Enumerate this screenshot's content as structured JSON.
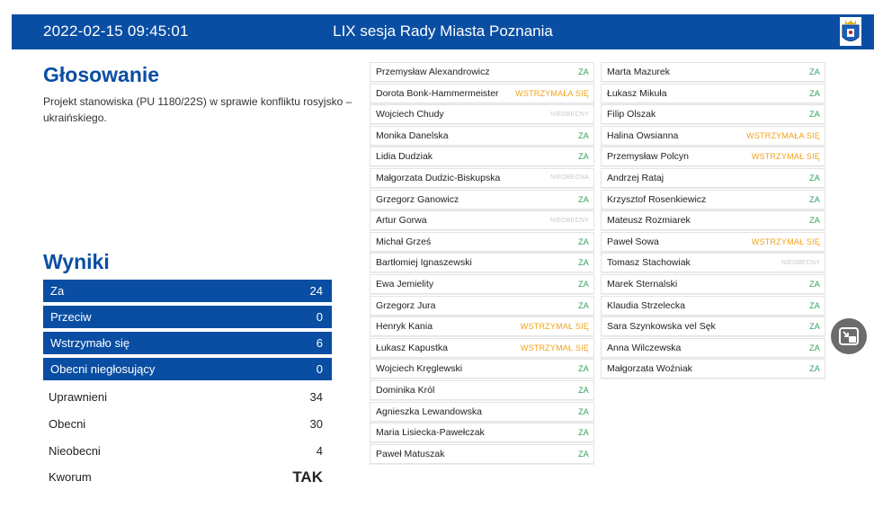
{
  "header": {
    "datetime": "2022-02-15   09:45:01",
    "title": "LIX sesja Rady Miasta Poznania"
  },
  "voting": {
    "heading": "Głosowanie",
    "project": "Projekt stanowiska (PU 1180/22S) w sprawie konfliktu rosyjsko – ukraińskiego."
  },
  "results": {
    "heading": "Wyniki",
    "za_label": "Za",
    "za_value": "24",
    "przeciw_label": "Przeciw",
    "przeciw_value": "0",
    "wstrzymalo_label": "Wstrzymało się",
    "wstrzymalo_value": "6",
    "obecni_nieg_label": "Obecni niegłosujący",
    "obecni_nieg_value": "0",
    "uprawnieni_label": "Uprawnieni",
    "uprawnieni_value": "34",
    "obecni_label": "Obecni",
    "obecni_value": "30",
    "nieobecni_label": "Nieobecni",
    "nieobecni_value": "4",
    "kworum_label": "Kworum",
    "kworum_value": "TAK"
  },
  "votes_left": [
    {
      "name": "Przemysław Alexandrowicz",
      "vote": "ZA"
    },
    {
      "name": "Dorota Bonk-Hammermeister",
      "vote": "WSTRZYMAŁA SIĘ"
    },
    {
      "name": "Wojciech Chudy",
      "vote": "NIEOBECNY"
    },
    {
      "name": "Monika Danelska",
      "vote": "ZA"
    },
    {
      "name": "Lidia Dudziak",
      "vote": "ZA"
    },
    {
      "name": "Małgorzata Dudzic-Biskupska",
      "vote": "NIEOBECNA"
    },
    {
      "name": "Grzegorz Ganowicz",
      "vote": "ZA"
    },
    {
      "name": "Artur Gorwa",
      "vote": "NIEOBECNY"
    },
    {
      "name": "Michał Grześ",
      "vote": "ZA"
    },
    {
      "name": "Bartłomiej Ignaszewski",
      "vote": "ZA"
    },
    {
      "name": "Ewa Jemielity",
      "vote": "ZA"
    },
    {
      "name": "Grzegorz Jura",
      "vote": "ZA"
    },
    {
      "name": "Henryk Kania",
      "vote": "WSTRZYMAŁ SIĘ"
    },
    {
      "name": "Łukasz Kapustka",
      "vote": "WSTRZYMAŁ SIĘ"
    },
    {
      "name": "Wojciech Kręglewski",
      "vote": "ZA"
    },
    {
      "name": "Dominika Król",
      "vote": "ZA"
    },
    {
      "name": "Agnieszka Lewandowska",
      "vote": "ZA"
    },
    {
      "name": "Maria Lisiecka-Pawełczak",
      "vote": "ZA"
    },
    {
      "name": "Paweł Matuszak",
      "vote": "ZA"
    }
  ],
  "votes_right": [
    {
      "name": "Marta Mazurek",
      "vote": "ZA"
    },
    {
      "name": "Łukasz Mikuła",
      "vote": "ZA"
    },
    {
      "name": "Filip Olszak",
      "vote": "ZA"
    },
    {
      "name": "Halina Owsianna",
      "vote": "WSTRZYMAŁA SIĘ"
    },
    {
      "name": "Przemysław Polcyn",
      "vote": "WSTRZYMAŁ SIĘ"
    },
    {
      "name": "Andrzej Rataj",
      "vote": "ZA"
    },
    {
      "name": "Krzysztof Rosenkiewicz",
      "vote": "ZA"
    },
    {
      "name": "Mateusz Rozmiarek",
      "vote": "ZA"
    },
    {
      "name": "Paweł Sowa",
      "vote": "WSTRZYMAŁ SIĘ"
    },
    {
      "name": "Tomasz Stachowiak",
      "vote": "NIEOBECNY"
    },
    {
      "name": "Marek Sternalski",
      "vote": "ZA"
    },
    {
      "name": "Klaudia Strzelecka",
      "vote": "ZA"
    },
    {
      "name": "Sara Szynkowska vel Sęk",
      "vote": "ZA"
    },
    {
      "name": "Anna Wilczewska",
      "vote": "ZA"
    },
    {
      "name": "Małgorzata Woźniak",
      "vote": "ZA"
    }
  ],
  "colors": {
    "brand": "#0a4ea3",
    "za": "#2ca35a",
    "wstrzymal": "#f2a21a",
    "nieobecny": "#c9c9c9"
  }
}
